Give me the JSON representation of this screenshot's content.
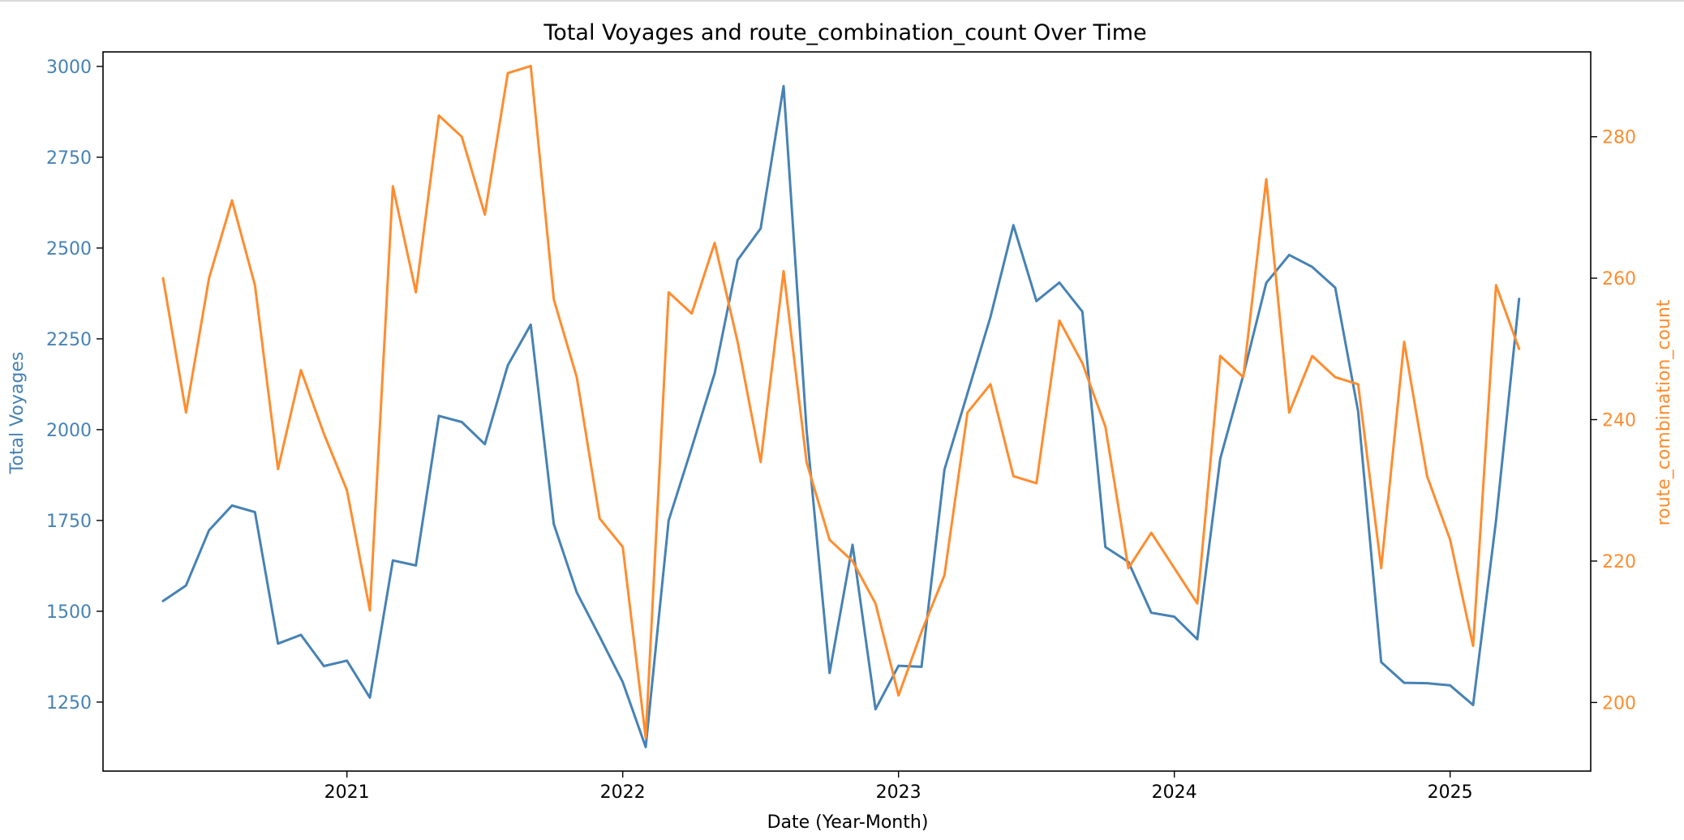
{
  "chart_data": {
    "type": "line",
    "title": "Total Voyages and route_combination_count Over Time",
    "xlabel": "Date (Year-Month)",
    "x_ticks": [
      "2021",
      "2022",
      "2023",
      "2024",
      "2025"
    ],
    "x": [
      "2020-05",
      "2020-06",
      "2020-07",
      "2020-08",
      "2020-09",
      "2020-10",
      "2020-11",
      "2020-12",
      "2021-01",
      "2021-02",
      "2021-03",
      "2021-04",
      "2021-05",
      "2021-06",
      "2021-07",
      "2021-08",
      "2021-09",
      "2021-10",
      "2021-11",
      "2021-12",
      "2022-01",
      "2022-02",
      "2022-03",
      "2022-04",
      "2022-05",
      "2022-06",
      "2022-07",
      "2022-08",
      "2022-09",
      "2022-10",
      "2022-11",
      "2022-12",
      "2023-01",
      "2023-02",
      "2023-03",
      "2023-04",
      "2023-05",
      "2023-06",
      "2023-07",
      "2023-08",
      "2023-09",
      "2023-10",
      "2023-11",
      "2023-12",
      "2024-01",
      "2024-02",
      "2024-03",
      "2024-04",
      "2024-05",
      "2024-06",
      "2024-07",
      "2024-08",
      "2024-09",
      "2024-10",
      "2024-11",
      "2024-12",
      "2025-01",
      "2025-02",
      "2025-03",
      "2025-04"
    ],
    "left_axis": {
      "label": "Total Voyages",
      "color": "#4682b4",
      "ylim": [
        1060,
        3040
      ],
      "ticks": [
        1250,
        1500,
        1750,
        2000,
        2250,
        2500,
        2750,
        3000
      ]
    },
    "right_axis": {
      "label": "route_combination_count",
      "color": "#ff8c2e",
      "ylim": [
        190.3,
        292
      ],
      "ticks": [
        200,
        220,
        240,
        260,
        280
      ]
    },
    "series": [
      {
        "name": "Total Voyages",
        "axis": "left",
        "color": "#4682b4",
        "values": [
          1528,
          1571,
          1723,
          1791,
          1773,
          1411,
          1435,
          1349,
          1364,
          1262,
          1640,
          1626,
          2038,
          2021,
          1960,
          2177,
          2289,
          1740,
          1552,
          1430,
          1305,
          1126,
          1750,
          1950,
          2155,
          2467,
          2554,
          2946,
          2000,
          1330,
          1683,
          1230,
          1350,
          1347,
          1890,
          2100,
          2310,
          2563,
          2354,
          2405,
          2325,
          1677,
          1636,
          1496,
          1485,
          1423,
          1920,
          2150,
          2404,
          2481,
          2448,
          2391,
          2050,
          1360,
          1303,
          1302,
          1296,
          1242,
          1750,
          2360
        ]
      },
      {
        "name": "route_combination_count",
        "axis": "right",
        "color": "#ff8c2e",
        "values": [
          260,
          241,
          260,
          271,
          259,
          233,
          247,
          238,
          230,
          213,
          273,
          258,
          283,
          280,
          269,
          289,
          290,
          257,
          246,
          226,
          222,
          195,
          258,
          255,
          265,
          251,
          234,
          261,
          234,
          223,
          220,
          214,
          201,
          210,
          218,
          241,
          245,
          232,
          231,
          254,
          248,
          239,
          219,
          224,
          219,
          214,
          249,
          246,
          274,
          241,
          249,
          246,
          245,
          219,
          251,
          232,
          223,
          208,
          259,
          250
        ]
      }
    ],
    "grid": false,
    "legend": "none"
  }
}
